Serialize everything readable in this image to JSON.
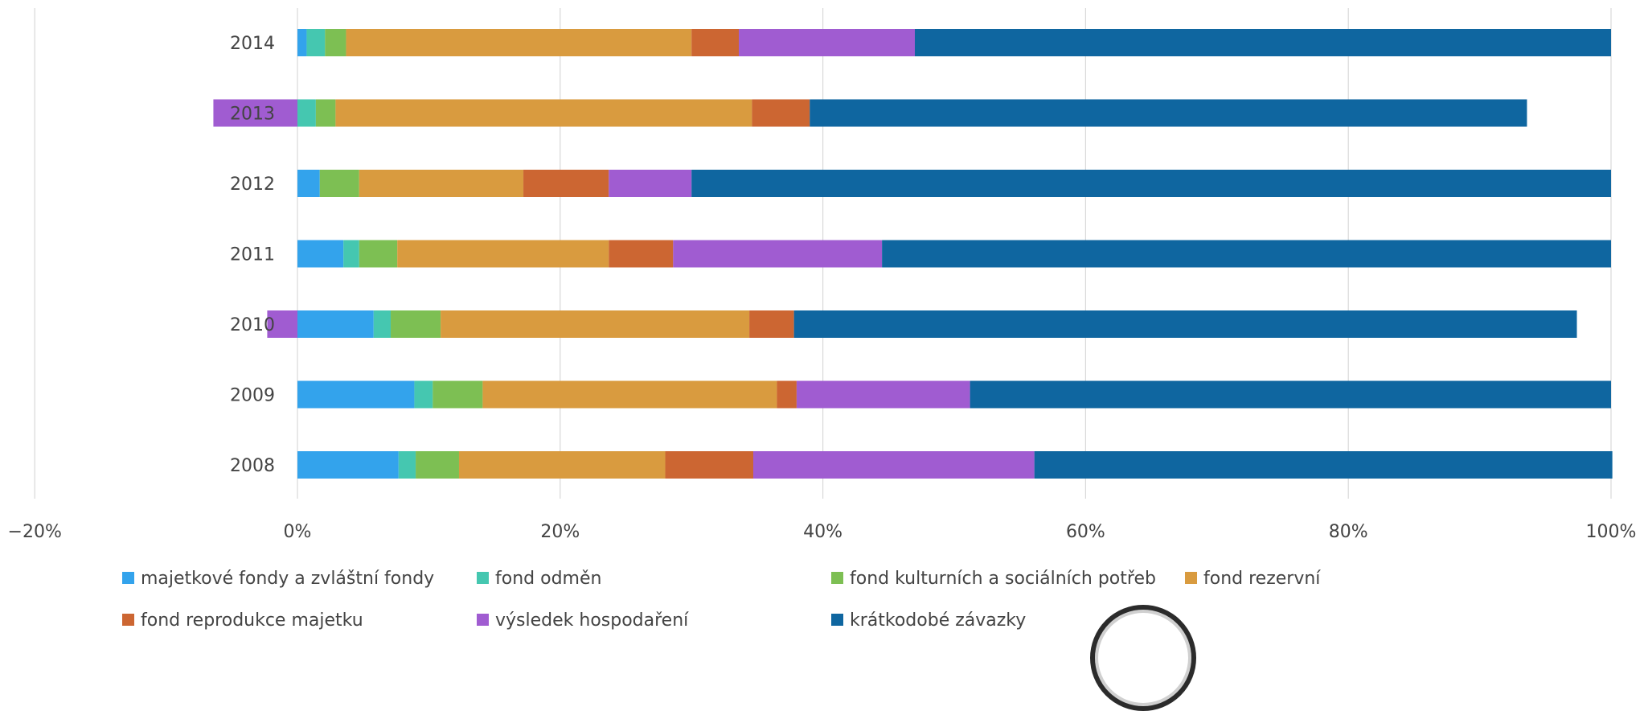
{
  "chart_data": {
    "type": "bar",
    "orientation": "horizontal",
    "stacked": true,
    "normalized": "percent",
    "categories": [
      "2014",
      "2013",
      "2012",
      "2011",
      "2010",
      "2009",
      "2008"
    ],
    "xlim": [
      -20,
      100
    ],
    "xticks": [
      -20,
      0,
      20,
      40,
      60,
      80,
      100
    ],
    "xtick_labels": [
      "−20%",
      "0%",
      "20%",
      "40%",
      "60%",
      "80%",
      "100%"
    ],
    "grid": "vertical",
    "legend_position": "bottom",
    "series": [
      {
        "name": "majetkové fondy a zvláštní fondy",
        "color": "#33a3ec",
        "values": [
          0.7,
          0.0,
          1.7,
          3.5,
          5.8,
          8.9,
          7.7
        ]
      },
      {
        "name": "fond odměn",
        "color": "#45c7b0",
        "values": [
          1.4,
          1.4,
          0.0,
          1.2,
          1.3,
          1.4,
          1.3
        ]
      },
      {
        "name": "fond kulturních a sociálních potřeb",
        "color": "#7dbf53",
        "values": [
          1.6,
          1.5,
          3.0,
          2.9,
          3.8,
          3.8,
          3.3
        ]
      },
      {
        "name": "fond rezervní",
        "color": "#d99b3f",
        "values": [
          26.3,
          31.7,
          12.5,
          16.1,
          23.5,
          22.4,
          15.7
        ]
      },
      {
        "name": "fond reprodukce majetku",
        "color": "#cc6632",
        "values": [
          3.6,
          4.4,
          6.5,
          4.9,
          3.4,
          1.5,
          6.7
        ]
      },
      {
        "name": "výsledek hospodaření",
        "color": "#a05cd1",
        "values": [
          13.4,
          -6.4,
          6.3,
          15.9,
          -2.3,
          13.2,
          21.4
        ]
      },
      {
        "name": "krátkodobé závazky",
        "color": "#0f66a0",
        "values": [
          53.0,
          54.6,
          70.0,
          55.5,
          59.6,
          48.8,
          44.0
        ]
      }
    ]
  }
}
